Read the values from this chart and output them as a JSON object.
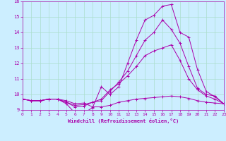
{
  "title": "",
  "xlabel": "Windchill (Refroidissement éolien,°C)",
  "ylabel": "",
  "bg_color": "#cceeff",
  "line_color": "#aa00aa",
  "grid_color": "#aaddee",
  "xlim": [
    0,
    23
  ],
  "ylim": [
    9,
    16
  ],
  "yticks": [
    9,
    10,
    11,
    12,
    13,
    14,
    15,
    16
  ],
  "xticks": [
    0,
    1,
    2,
    3,
    4,
    5,
    6,
    7,
    8,
    9,
    10,
    11,
    12,
    13,
    14,
    15,
    16,
    17,
    18,
    19,
    20,
    21,
    22,
    23
  ],
  "line1_x": [
    0,
    1,
    2,
    3,
    4,
    5,
    6,
    7,
    8,
    9,
    10,
    11,
    12,
    13,
    14,
    15,
    16,
    17,
    18,
    19,
    20,
    21,
    22,
    23
  ],
  "line1_y": [
    9.7,
    9.6,
    9.6,
    9.7,
    9.7,
    9.6,
    9.4,
    9.45,
    9.2,
    9.2,
    9.3,
    9.5,
    9.6,
    9.7,
    9.75,
    9.8,
    9.85,
    9.9,
    9.85,
    9.75,
    9.6,
    9.5,
    9.45,
    9.4
  ],
  "line2_x": [
    0,
    1,
    2,
    3,
    4,
    5,
    6,
    7,
    8,
    9,
    10,
    11,
    12,
    13,
    14,
    15,
    16,
    17,
    18,
    19,
    20,
    21,
    22,
    23
  ],
  "line2_y": [
    9.7,
    9.6,
    9.6,
    9.7,
    9.7,
    9.4,
    8.8,
    8.8,
    9.15,
    10.5,
    10.0,
    10.5,
    12.0,
    13.5,
    14.8,
    15.1,
    15.7,
    15.8,
    14.0,
    13.7,
    11.6,
    10.2,
    9.85,
    9.4
  ],
  "line3_x": [
    0,
    1,
    2,
    3,
    4,
    5,
    6,
    7,
    8,
    9,
    10,
    11,
    12,
    13,
    14,
    15,
    16,
    17,
    18,
    19,
    20,
    21,
    22,
    23
  ],
  "line3_y": [
    9.7,
    9.6,
    9.6,
    9.7,
    9.7,
    9.5,
    9.3,
    9.35,
    9.5,
    9.6,
    10.2,
    10.8,
    11.5,
    12.5,
    13.5,
    14.0,
    14.8,
    14.2,
    13.3,
    11.8,
    10.4,
    10.0,
    9.9,
    9.4
  ],
  "line4_x": [
    0,
    1,
    2,
    3,
    4,
    5,
    6,
    7,
    8,
    9,
    10,
    11,
    12,
    13,
    14,
    15,
    16,
    17,
    18,
    19,
    20,
    21,
    22,
    23
  ],
  "line4_y": [
    9.7,
    9.6,
    9.6,
    9.7,
    9.7,
    9.5,
    9.2,
    9.25,
    9.5,
    9.7,
    10.3,
    10.7,
    11.2,
    11.8,
    12.5,
    12.8,
    13.0,
    13.2,
    12.2,
    11.0,
    10.3,
    9.9,
    9.7,
    9.4
  ]
}
